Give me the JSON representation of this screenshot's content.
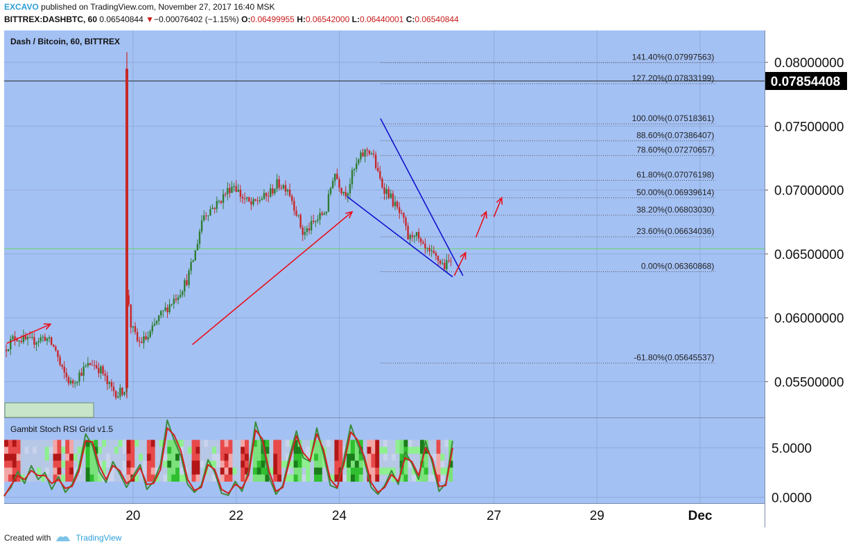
{
  "header": {
    "publisher": "EXCAVO",
    "published_text": "published on TradingView.com, November 27, 2017 16:40 MSK",
    "symbol": "BITTREX:DASHBTC, 60",
    "last_price": "0.06540844",
    "change_arrow": "▼",
    "change": "−0.00076402 (−1.15%)",
    "o_label": "O:",
    "o_value": "0.06499955",
    "h_label": "H:",
    "h_value": "0.06542000",
    "l_label": "L:",
    "l_value": "0.06440001",
    "c_label": "C:",
    "c_value": "0.06540844"
  },
  "colors": {
    "pane_bg": "#a4c1f4",
    "grid": "#8fabd9",
    "candle_up": "#2e7d32",
    "candle_down": "#c62828",
    "wedge_line": "#1111cc",
    "arrow": "#e8101c",
    "fib_line": "#555555",
    "current_price_line": "#6ad36a",
    "brand": "#2e9fd8"
  },
  "main_pane": {
    "title": "Dash / Bitcoin, 60, BITTREX"
  },
  "indicator_pane": {
    "title": "Gambit Stoch RSI Grid v1.5"
  },
  "crosshair_price": "0.07854408",
  "footer": {
    "created_with": "Created with",
    "brand": "TradingView"
  },
  "chart_data": [
    {
      "type": "candlestick",
      "title": "Dash / Bitcoin, 60, BITTREX",
      "ylim": [
        0.0522,
        0.0825
      ],
      "y_ticks": [
        "0.08000000",
        "0.07500000",
        "0.07000000",
        "0.06500000",
        "0.06000000",
        "0.05500000"
      ],
      "x_ticks": [
        "20",
        "22",
        "24",
        "27",
        "29",
        "Dec"
      ],
      "x_ticks_time_index": [
        2.5,
        4.5,
        6.5,
        9.5,
        11.5,
        13.5
      ],
      "x_range_time_index": [
        0.0,
        14.75
      ],
      "grid": true,
      "price_path": [
        [
          0.0,
          0.0575
        ],
        [
          0.2,
          0.0585
        ],
        [
          0.5,
          0.0581
        ],
        [
          0.8,
          0.0585
        ],
        [
          1.0,
          0.0575
        ],
        [
          1.1,
          0.056
        ],
        [
          1.3,
          0.0548
        ],
        [
          1.5,
          0.0558
        ],
        [
          1.7,
          0.0565
        ],
        [
          1.9,
          0.0558
        ],
        [
          2.0,
          0.0548
        ],
        [
          2.2,
          0.054
        ],
        [
          2.35,
          0.0545
        ],
        [
          2.38,
          0.063
        ],
        [
          2.45,
          0.0595
        ],
        [
          2.6,
          0.058
        ],
        [
          2.8,
          0.0585
        ],
        [
          3.0,
          0.06
        ],
        [
          3.2,
          0.061
        ],
        [
          3.4,
          0.062
        ],
        [
          3.55,
          0.063
        ],
        [
          3.7,
          0.065
        ],
        [
          3.85,
          0.068
        ],
        [
          4.0,
          0.0685
        ],
        [
          4.15,
          0.069
        ],
        [
          4.3,
          0.0698
        ],
        [
          4.45,
          0.0705
        ],
        [
          4.6,
          0.0695
        ],
        [
          4.8,
          0.0688
        ],
        [
          4.95,
          0.0693
        ],
        [
          5.1,
          0.0695
        ],
        [
          5.3,
          0.0705
        ],
        [
          5.5,
          0.0702
        ],
        [
          5.65,
          0.0685
        ],
        [
          5.8,
          0.0665
        ],
        [
          5.95,
          0.0672
        ],
        [
          6.1,
          0.0678
        ],
        [
          6.25,
          0.0685
        ],
        [
          6.4,
          0.0715
        ],
        [
          6.55,
          0.07
        ],
        [
          6.65,
          0.0698
        ],
        [
          6.75,
          0.0712
        ],
        [
          6.9,
          0.0725
        ],
        [
          7.05,
          0.0732
        ],
        [
          7.15,
          0.0728
        ],
        [
          7.25,
          0.0712
        ],
        [
          7.35,
          0.0702
        ],
        [
          7.45,
          0.0698
        ],
        [
          7.55,
          0.069
        ],
        [
          7.65,
          0.0683
        ],
        [
          7.75,
          0.0675
        ],
        [
          7.85,
          0.066
        ],
        [
          7.95,
          0.0668
        ],
        [
          8.1,
          0.0655
        ],
        [
          8.25,
          0.065
        ],
        [
          8.4,
          0.0646
        ],
        [
          8.55,
          0.064
        ],
        [
          8.65,
          0.0645
        ],
        [
          8.7,
          0.0654
        ]
      ],
      "spike": {
        "time_index": 2.38,
        "high": 0.0808,
        "low": 0.0537
      },
      "current_price": 0.06540844,
      "fibonacci_levels": [
        {
          "label": "141.40%(0.07997563)",
          "value": 0.07997563
        },
        {
          "label": "127.20%(0.07833199)",
          "value": 0.07833199
        },
        {
          "label": "100.00%(0.07518361)",
          "value": 0.07518361
        },
        {
          "label": "88.60%(0.07386407)",
          "value": 0.07386407
        },
        {
          "label": "78.60%(0.07270657)",
          "value": 0.07270657
        },
        {
          "label": "61.80%(0.07076198)",
          "value": 0.07076198
        },
        {
          "label": "50.00%(0.06939614)",
          "value": 0.06939614
        },
        {
          "label": "38.20%(0.06803030)",
          "value": 0.0680303
        },
        {
          "label": "23.60%(0.06634036)",
          "value": 0.06634036
        },
        {
          "label": "0.00%(0.06360868)",
          "value": 0.06360868
        },
        {
          "label": "-61.80%(0.05645537)",
          "value": 0.05645537
        }
      ],
      "fib_time_range": [
        7.3,
        13.8
      ],
      "crosshair_value": 0.07854408,
      "wedge_lines": [
        [
          [
            7.3,
            0.0756
          ],
          [
            8.9,
            0.0633
          ]
        ],
        [
          [
            6.65,
            0.0695
          ],
          [
            8.7,
            0.0632
          ]
        ]
      ],
      "arrows": [
        [
          [
            0.05,
            0.058
          ],
          [
            0.9,
            0.0595
          ]
        ],
        [
          [
            3.65,
            0.0579
          ],
          [
            6.75,
            0.0683
          ]
        ],
        [
          [
            8.73,
            0.0633
          ],
          [
            8.95,
            0.0651
          ]
        ],
        [
          [
            9.15,
            0.0663
          ],
          [
            9.35,
            0.0683
          ]
        ],
        [
          [
            9.5,
            0.0679
          ],
          [
            9.65,
            0.0694
          ]
        ]
      ]
    },
    {
      "type": "line",
      "title": "Gambit Stoch RSI Grid v1.5",
      "ylim": [
        -0.6,
        8.0
      ],
      "y_ticks": [
        "5.0000",
        "0.0000"
      ],
      "series": [
        {
          "values": [
            0.2,
            1.0,
            2.6,
            1.4,
            3.2,
            1.8,
            2.5,
            0.8,
            2.1,
            0.5,
            1.3,
            3.0,
            6.4,
            5.2,
            2.6,
            1.5,
            3.6,
            2.4,
            1.0,
            2.2,
            3.3,
            0.8,
            1.6,
            3.3,
            7.8,
            5.8,
            4.2,
            1.3,
            0.5,
            1.2,
            3.8,
            2.5,
            0.4,
            0.2,
            1.6,
            0.6,
            2.7,
            7.6,
            5.3,
            2.0,
            0.3,
            1.2,
            4.2,
            6.7,
            4.0,
            3.6,
            7.0,
            4.3,
            1.2,
            0.9,
            3.9,
            7.3,
            5.4,
            3.7,
            1.0,
            0.3,
            1.2,
            2.7,
            1.3,
            4.6,
            3.4,
            1.8,
            5.7,
            3.5,
            0.6,
            1.4,
            5.7
          ]
        },
        {
          "values": [
            0.1,
            1.2,
            2.2,
            1.8,
            2.7,
            2.2,
            2.2,
            1.4,
            1.8,
            0.9,
            1.1,
            2.6,
            5.7,
            5.6,
            3.2,
            1.8,
            3.2,
            2.7,
            1.4,
            1.9,
            3.0,
            1.3,
            1.4,
            2.8,
            7.0,
            6.3,
            4.7,
            1.8,
            0.7,
            1.0,
            3.3,
            2.8,
            0.8,
            0.4,
            1.3,
            0.9,
            2.3,
            6.8,
            5.9,
            2.6,
            0.6,
            1.0,
            3.7,
            6.2,
            4.5,
            3.7,
            6.4,
            4.8,
            1.8,
            1.0,
            3.4,
            6.6,
            5.8,
            4.1,
            1.5,
            0.5,
            1.0,
            2.3,
            1.6,
            4.0,
            3.6,
            2.2,
            5.0,
            3.9,
            1.1,
            1.2,
            5.0
          ]
        }
      ]
    }
  ]
}
